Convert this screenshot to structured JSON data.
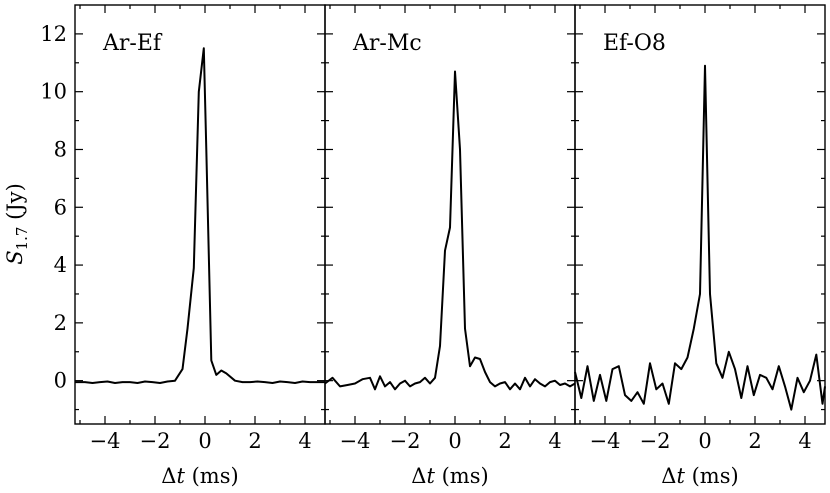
{
  "chart_data": [
    {
      "type": "line",
      "title": "Ar-Ef",
      "xlabel_prefix": "Δ",
      "xlabel_var": "t",
      "xlabel_suffix": " (ms)",
      "ylabel_main": "S",
      "ylabel_sub": "1.7",
      "ylabel_unit": " (Jy)",
      "xlim": [
        -5.2,
        4.8
      ],
      "ylim": [
        -1.5,
        13
      ],
      "xticks": [
        -4,
        -2,
        0,
        2,
        4
      ],
      "xtick_labels": [
        "−4",
        "−2",
        "0",
        "2",
        "4"
      ],
      "yticks": [
        0,
        2,
        4,
        6,
        8,
        10,
        12
      ],
      "ytick_labels": [
        "0",
        "2",
        "4",
        "6",
        "8",
        "10",
        "12"
      ],
      "x": [
        -5.2,
        -4.8,
        -4.5,
        -4.2,
        -3.9,
        -3.6,
        -3.3,
        -3.0,
        -2.7,
        -2.4,
        -2.1,
        -1.8,
        -1.5,
        -1.2,
        -0.9,
        -0.7,
        -0.45,
        -0.25,
        -0.05,
        0.05,
        0.25,
        0.45,
        0.65,
        0.85,
        1.2,
        1.5,
        1.8,
        2.1,
        2.4,
        2.7,
        3.0,
        3.3,
        3.6,
        3.9,
        4.2,
        4.5,
        4.8
      ],
      "y": [
        -0.05,
        -0.05,
        -0.08,
        -0.05,
        -0.03,
        -0.08,
        -0.05,
        -0.05,
        -0.08,
        -0.03,
        -0.05,
        -0.08,
        -0.03,
        0.0,
        0.4,
        1.8,
        3.9,
        10.0,
        11.5,
        8.0,
        0.7,
        0.2,
        0.35,
        0.25,
        0.0,
        -0.05,
        -0.05,
        -0.03,
        -0.05,
        -0.08,
        -0.03,
        -0.05,
        -0.08,
        -0.03,
        -0.05,
        -0.05,
        -0.05
      ]
    },
    {
      "type": "line",
      "title": "Ar-Mc",
      "xlabel_prefix": "Δ",
      "xlabel_var": "t",
      "xlabel_suffix": " (ms)",
      "xlim": [
        -5.2,
        4.8
      ],
      "ylim": [
        -1.5,
        13
      ],
      "xticks": [
        -4,
        -2,
        0,
        2,
        4
      ],
      "xtick_labels": [
        "−4",
        "−2",
        "0",
        "2",
        "4"
      ],
      "yticks": [
        0,
        2,
        4,
        6,
        8,
        10,
        12
      ],
      "x": [
        -5.2,
        -4.9,
        -4.6,
        -4.3,
        -4.0,
        -3.7,
        -3.4,
        -3.2,
        -3.0,
        -2.8,
        -2.6,
        -2.4,
        -2.2,
        -2.0,
        -1.8,
        -1.6,
        -1.4,
        -1.2,
        -1.0,
        -0.8,
        -0.6,
        -0.4,
        -0.2,
        0.0,
        0.2,
        0.4,
        0.6,
        0.8,
        1.0,
        1.2,
        1.4,
        1.6,
        1.8,
        2.0,
        2.2,
        2.4,
        2.6,
        2.8,
        3.0,
        3.2,
        3.4,
        3.6,
        3.8,
        4.0,
        4.2,
        4.4,
        4.6,
        4.8
      ],
      "y": [
        -0.1,
        0.1,
        -0.2,
        -0.15,
        -0.1,
        0.05,
        0.1,
        -0.3,
        0.15,
        -0.2,
        -0.05,
        -0.3,
        -0.1,
        0.0,
        -0.2,
        -0.1,
        -0.05,
        0.1,
        -0.1,
        0.1,
        1.2,
        4.5,
        5.3,
        10.7,
        8.0,
        1.8,
        0.5,
        0.8,
        0.75,
        0.3,
        -0.05,
        -0.2,
        -0.1,
        -0.05,
        -0.3,
        -0.1,
        -0.3,
        0.1,
        -0.2,
        0.05,
        -0.1,
        -0.2,
        -0.05,
        0.0,
        -0.15,
        -0.1,
        -0.2,
        -0.1
      ]
    },
    {
      "type": "line",
      "title": "Ef-O8",
      "xlabel_prefix": "Δ",
      "xlabel_var": "t",
      "xlabel_suffix": " (ms)",
      "xlim": [
        -5.2,
        4.8
      ],
      "ylim": [
        -1.5,
        13
      ],
      "xticks": [
        -4,
        -2,
        0,
        2,
        4
      ],
      "xtick_labels": [
        "−4",
        "−2",
        "0",
        "2",
        "4"
      ],
      "yticks": [
        0,
        2,
        4,
        6,
        8,
        10,
        12
      ],
      "x": [
        -5.2,
        -4.95,
        -4.7,
        -4.45,
        -4.2,
        -3.95,
        -3.7,
        -3.45,
        -3.2,
        -2.95,
        -2.7,
        -2.45,
        -2.2,
        -1.95,
        -1.7,
        -1.45,
        -1.2,
        -0.95,
        -0.7,
        -0.45,
        -0.2,
        0.0,
        0.2,
        0.45,
        0.7,
        0.95,
        1.2,
        1.45,
        1.7,
        1.95,
        2.2,
        2.45,
        2.7,
        2.95,
        3.2,
        3.45,
        3.7,
        3.95,
        4.2,
        4.45,
        4.7,
        4.8
      ],
      "y": [
        0.3,
        -0.6,
        0.5,
        -0.7,
        0.2,
        -0.7,
        0.4,
        0.5,
        -0.5,
        -0.7,
        -0.4,
        -0.8,
        0.6,
        -0.3,
        -0.1,
        -0.8,
        0.6,
        0.4,
        0.8,
        1.8,
        3.0,
        10.9,
        3.0,
        0.6,
        0.1,
        1.0,
        0.4,
        -0.6,
        0.5,
        -0.5,
        0.2,
        0.1,
        -0.3,
        0.5,
        -0.2,
        -1.0,
        0.1,
        -0.4,
        0.0,
        0.9,
        -0.8,
        -0.2
      ]
    }
  ]
}
